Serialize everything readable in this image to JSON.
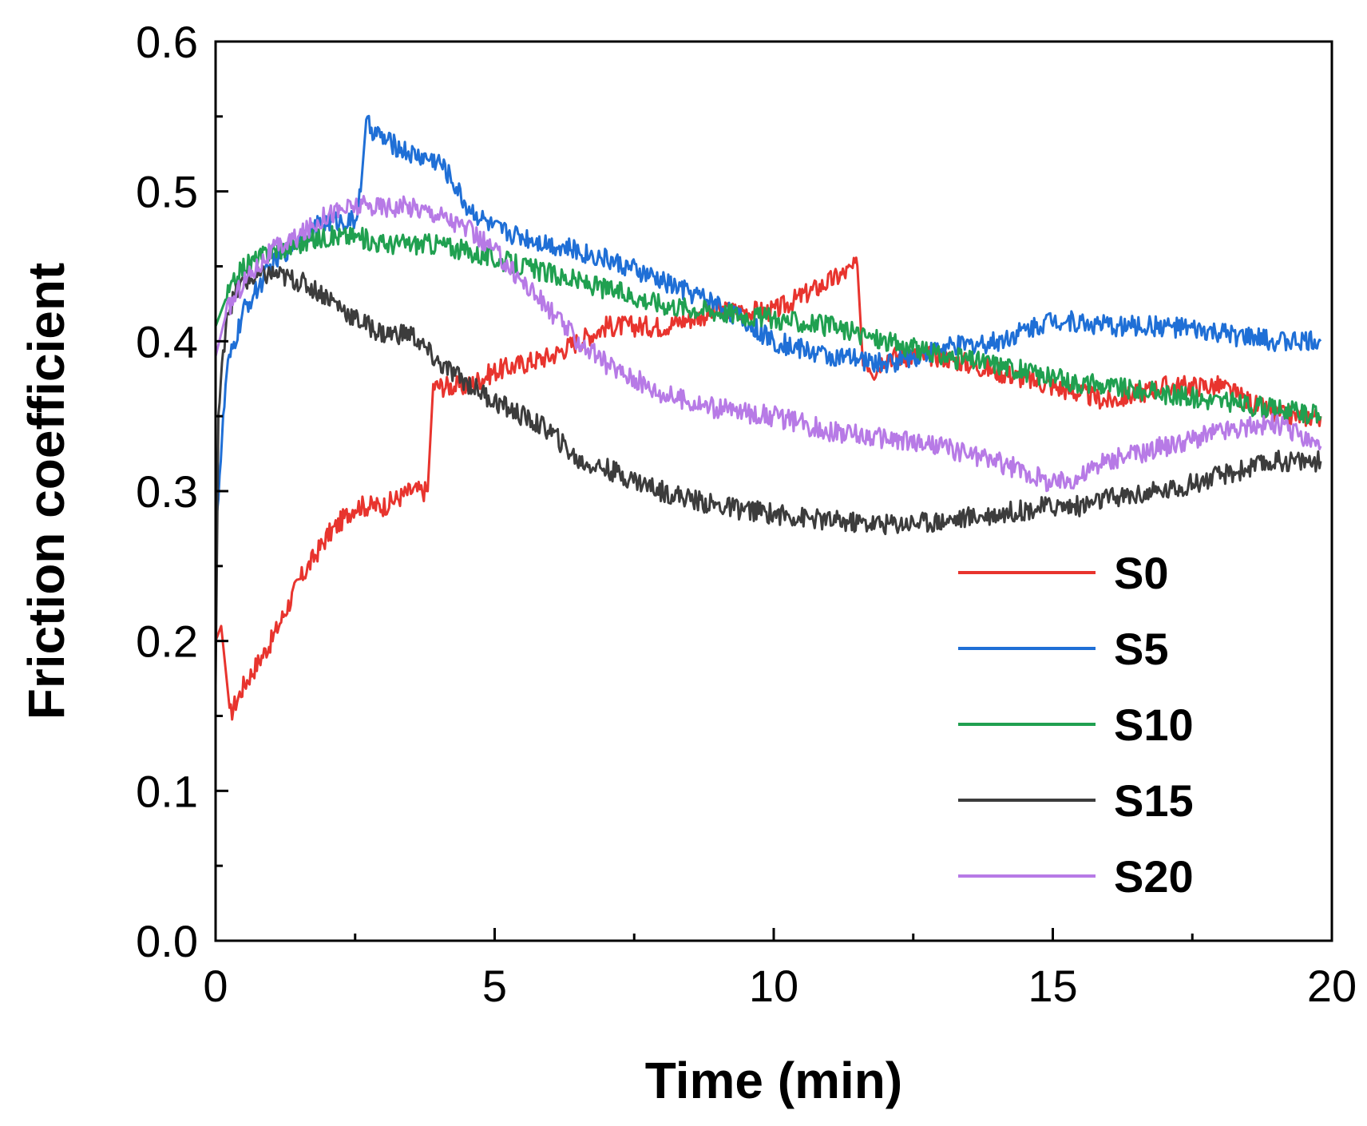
{
  "chart_data": {
    "type": "line",
    "title": "",
    "xlabel": "Time (min)",
    "ylabel": "Friction coefficient",
    "xlim": [
      0,
      20
    ],
    "ylim": [
      0,
      0.6
    ],
    "xticks": [
      0,
      5,
      10,
      15,
      20
    ],
    "xtick_labels": [
      "0",
      "5",
      "10",
      "15",
      "20"
    ],
    "yticks": [
      0,
      0.1,
      0.2,
      0.3,
      0.4,
      0.5,
      0.6
    ],
    "ytick_labels": [
      "0.0",
      "0.1",
      "0.2",
      "0.3",
      "0.4",
      "0.5",
      "0.6"
    ],
    "grid": false,
    "legend_position": "bottom-right",
    "series": [
      {
        "name": "S0",
        "color": "#e8342e",
        "x": [
          0,
          0.1,
          0.25,
          0.5,
          1.0,
          1.5,
          2.0,
          2.5,
          3.0,
          3.5,
          3.8,
          3.9,
          4.5,
          5.0,
          6.0,
          7.0,
          8.0,
          9.0,
          10.0,
          11.0,
          11.5,
          11.6,
          11.8,
          12.0,
          13.0,
          14.0,
          15.0,
          16.0,
          17.0,
          18.0,
          19.0,
          19.8
        ],
        "y": [
          0.2,
          0.21,
          0.15,
          0.17,
          0.2,
          0.24,
          0.27,
          0.29,
          0.29,
          0.3,
          0.3,
          0.37,
          0.37,
          0.38,
          0.39,
          0.41,
          0.41,
          0.42,
          0.42,
          0.44,
          0.45,
          0.39,
          0.38,
          0.39,
          0.39,
          0.38,
          0.37,
          0.36,
          0.37,
          0.37,
          0.35,
          0.35
        ]
      },
      {
        "name": "S5",
        "color": "#1f6fd6",
        "x": [
          0,
          0.05,
          0.2,
          0.5,
          1.0,
          1.5,
          2.0,
          2.5,
          2.6,
          2.7,
          3.0,
          3.5,
          4.0,
          4.2,
          4.5,
          5.0,
          6.0,
          7.0,
          8.0,
          9.0,
          10.0,
          11.0,
          12.0,
          13.0,
          14.0,
          15.0,
          16.0,
          17.0,
          18.0,
          19.0,
          19.8
        ],
        "y": [
          0.27,
          0.3,
          0.38,
          0.42,
          0.45,
          0.47,
          0.48,
          0.48,
          0.5,
          0.545,
          0.535,
          0.525,
          0.52,
          0.51,
          0.49,
          0.475,
          0.465,
          0.455,
          0.44,
          0.425,
          0.4,
          0.39,
          0.385,
          0.395,
          0.4,
          0.415,
          0.41,
          0.41,
          0.405,
          0.4,
          0.4
        ]
      },
      {
        "name": "S10",
        "color": "#20a050",
        "x": [
          0,
          0.2,
          0.5,
          1.0,
          1.5,
          2.0,
          2.5,
          3.0,
          4.0,
          5.0,
          6.0,
          7.0,
          8.0,
          9.0,
          10.0,
          11.0,
          12.0,
          13.0,
          14.0,
          15.0,
          16.0,
          17.0,
          18.0,
          19.0,
          19.8
        ],
        "y": [
          0.41,
          0.43,
          0.45,
          0.46,
          0.465,
          0.47,
          0.47,
          0.465,
          0.465,
          0.455,
          0.445,
          0.435,
          0.425,
          0.42,
          0.415,
          0.41,
          0.4,
          0.39,
          0.385,
          0.375,
          0.37,
          0.365,
          0.36,
          0.355,
          0.35
        ]
      },
      {
        "name": "S15",
        "color": "#3c3c3c",
        "x": [
          0,
          0.05,
          0.2,
          0.5,
          1.0,
          1.5,
          2.0,
          2.5,
          3.0,
          3.5,
          4.0,
          5.0,
          6.0,
          6.5,
          7.0,
          8.0,
          9.0,
          10.0,
          11.0,
          12.0,
          13.0,
          14.0,
          15.0,
          15.5,
          16.0,
          17.0,
          18.0,
          19.0,
          19.8
        ],
        "y": [
          0.17,
          0.35,
          0.42,
          0.44,
          0.445,
          0.44,
          0.43,
          0.415,
          0.405,
          0.405,
          0.385,
          0.36,
          0.34,
          0.32,
          0.315,
          0.3,
          0.29,
          0.285,
          0.28,
          0.278,
          0.28,
          0.285,
          0.29,
          0.29,
          0.295,
          0.3,
          0.31,
          0.32,
          0.32
        ]
      },
      {
        "name": "S20",
        "color": "#b77ae6",
        "x": [
          0,
          0.2,
          0.5,
          1.0,
          1.5,
          2.0,
          2.5,
          3.0,
          3.5,
          4.0,
          4.5,
          5.0,
          5.5,
          6.0,
          6.5,
          7.0,
          8.0,
          9.0,
          10.0,
          11.0,
          12.0,
          13.0,
          14.0,
          15.0,
          15.5,
          15.7,
          16.0,
          17.0,
          18.0,
          19.0,
          19.8
        ],
        "y": [
          0.39,
          0.42,
          0.44,
          0.46,
          0.47,
          0.485,
          0.49,
          0.49,
          0.49,
          0.485,
          0.475,
          0.46,
          0.44,
          0.42,
          0.4,
          0.385,
          0.365,
          0.355,
          0.35,
          0.34,
          0.335,
          0.33,
          0.32,
          0.305,
          0.31,
          0.315,
          0.32,
          0.33,
          0.34,
          0.345,
          0.33
        ]
      }
    ]
  }
}
